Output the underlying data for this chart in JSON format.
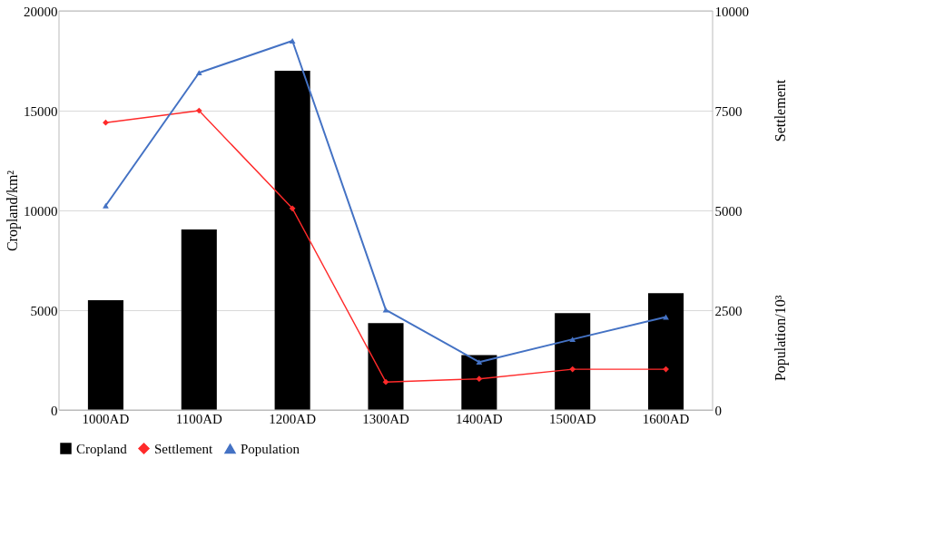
{
  "chart_data": {
    "type": "bar",
    "categories": [
      "1000AD",
      "1100AD",
      "1200AD",
      "1300AD",
      "1400AD",
      "1500AD",
      "1600AD"
    ],
    "series": [
      {
        "name": "Cropland",
        "color": "#000000",
        "values": [
          5500,
          9050,
          17000,
          4350,
          2750,
          4850,
          5850
        ]
      },
      {
        "name": "Settlement",
        "type": "line",
        "axis": "y2",
        "color": "#ff2a2a",
        "marker": "diamond",
        "values": [
          7200,
          7500,
          5050,
          700,
          780,
          1020,
          1020
        ]
      },
      {
        "name": "Population",
        "type": "line",
        "axis": "y2",
        "color": "#4472c4",
        "marker": "triangle",
        "values": [
          5120,
          8450,
          9250,
          2510,
          1200,
          1770,
          2330
        ]
      }
    ],
    "ylabel": "Cropland/km²",
    "y2label": "Settlement",
    "annotations": [
      "Population/10³"
    ],
    "ylim": [
      0,
      20000
    ],
    "yticks": [
      0,
      5000,
      10000,
      15000,
      20000
    ],
    "y2lim": [
      0,
      10000
    ],
    "y2ticks": [
      0,
      2500,
      5000,
      7500,
      10000
    ],
    "grid": "y",
    "legend": "bottom"
  }
}
